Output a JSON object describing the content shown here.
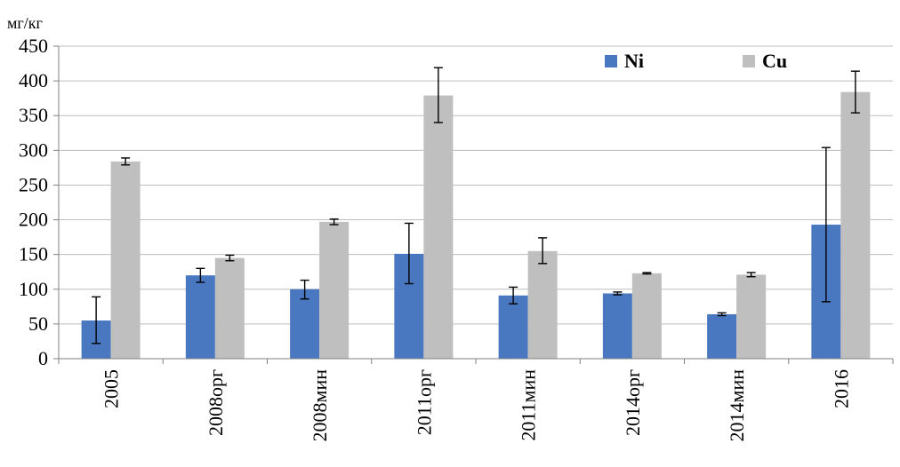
{
  "chart_data": {
    "type": "bar",
    "ylabel": "мг/кг",
    "ylim": [
      0,
      450
    ],
    "yticks": [
      0,
      50,
      100,
      150,
      200,
      250,
      300,
      350,
      400,
      450
    ],
    "grid": true,
    "legend_position": "top-right",
    "categories": [
      "2005",
      "2008орг",
      "2008мин",
      "2011орг",
      "2011мин",
      "2014орг",
      "2014мин",
      "2016"
    ],
    "series": [
      {
        "name": "Ni",
        "color": "#4a78c0",
        "values": [
          55,
          120,
          100,
          151,
          91,
          94,
          64,
          193
        ],
        "error_low": [
          22,
          110,
          86,
          108,
          79,
          92,
          62,
          82
        ],
        "error_high": [
          89,
          130,
          113,
          195,
          103,
          96,
          66,
          304
        ]
      },
      {
        "name": "Cu",
        "color": "#bfbfbf",
        "values": [
          284,
          145,
          197,
          379,
          155,
          123,
          121,
          384
        ],
        "error_low": [
          279,
          141,
          193,
          340,
          137,
          122,
          118,
          354
        ],
        "error_high": [
          289,
          149,
          201,
          419,
          174,
          124,
          124,
          414
        ]
      }
    ]
  }
}
